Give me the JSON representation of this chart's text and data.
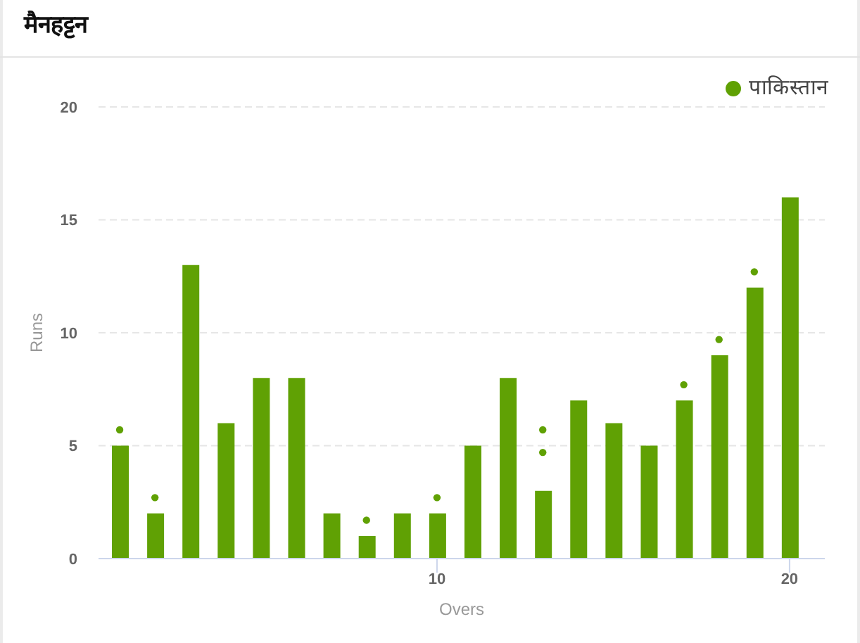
{
  "chart_data": {
    "type": "bar",
    "title": "मैनहट्टन",
    "xlabel": "Overs",
    "ylabel": "Runs",
    "x": [
      1,
      2,
      3,
      4,
      5,
      6,
      7,
      8,
      9,
      10,
      11,
      12,
      13,
      14,
      15,
      16,
      17,
      18,
      19,
      20
    ],
    "series": [
      {
        "name": "पाकिस्तान",
        "color": "#60a104",
        "values": [
          5,
          2,
          13,
          6,
          8,
          8,
          2,
          1,
          2,
          2,
          5,
          8,
          3,
          7,
          6,
          5,
          7,
          9,
          12,
          16
        ]
      },
      {
        "type": "scatter",
        "color": "#60a104",
        "x": [
          1,
          2,
          8,
          10,
          13,
          13,
          17,
          18,
          19
        ],
        "values": [
          5.7,
          2.7,
          1.7,
          2.7,
          5.7,
          4.7,
          7.7,
          9.7,
          12.7
        ]
      }
    ],
    "xlim": [
      0.4,
      21
    ],
    "xticks": [
      10,
      20
    ],
    "ylim": [
      0,
      20
    ],
    "yticks": [
      0,
      5,
      10,
      15,
      20
    ],
    "grid": "y",
    "legend": "top right",
    "marker": "circle"
  }
}
